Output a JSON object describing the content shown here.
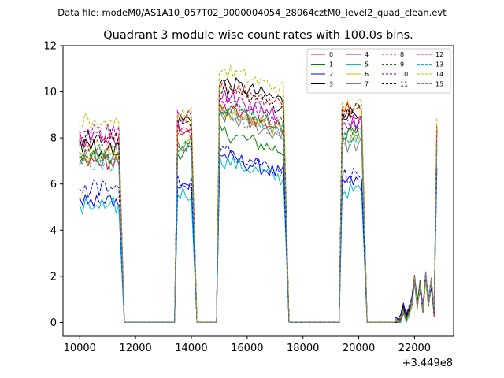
{
  "chart_data": {
    "type": "line",
    "suptitle": "Data file: modeM0/AS1A10_057T02_9000004054_28064cztM0_level2_quad_clean.evt",
    "title": "Quadrant 3 module wise count rates with 100.0s bins.",
    "xlabel": "",
    "ylabel": "",
    "x_offset_label": "+3.449e8",
    "xlim": [
      9400,
      23400
    ],
    "ylim": [
      -0.6,
      12
    ],
    "xticks": [
      10000,
      12000,
      14000,
      16000,
      18000,
      20000,
      22000
    ],
    "xtick_labels": [
      "10000",
      "12000",
      "14000",
      "16000",
      "18000",
      "20000",
      "22000"
    ],
    "yticks": [
      0,
      2,
      4,
      6,
      8,
      10,
      12
    ],
    "ytick_labels": [
      "0",
      "2",
      "4",
      "6",
      "8",
      "10",
      "12"
    ],
    "legend_position": "top-right",
    "legend_columns": 4,
    "series": [
      {
        "name": "0",
        "color": "#ff0000",
        "dash": "solid",
        "levels": [
          6.9,
          8.4,
          8.6,
          9.4,
          9.2
        ]
      },
      {
        "name": "1",
        "color": "#008000",
        "dash": "solid",
        "levels": [
          7.1,
          7.4,
          7.6,
          8.2,
          7.9
        ]
      },
      {
        "name": "2",
        "color": "#0000ff",
        "dash": "solid",
        "levels": [
          5.3,
          5.9,
          6.6,
          6.1,
          6.2
        ]
      },
      {
        "name": "3",
        "color": "#000000",
        "dash": "solid",
        "levels": [
          7.6,
          8.8,
          9.8,
          9.1,
          8.9
        ]
      },
      {
        "name": "4",
        "color": "#bf00bf",
        "dash": "solid",
        "levels": [
          8.0,
          8.6,
          9.2,
          8.7,
          8.4
        ]
      },
      {
        "name": "5",
        "color": "#00bfbf",
        "dash": "solid",
        "levels": [
          5.0,
          5.6,
          6.4,
          5.7,
          5.9
        ]
      },
      {
        "name": "6",
        "color": "#bfbf00",
        "dash": "solid",
        "levels": [
          7.3,
          7.7,
          8.5,
          8.0,
          7.8
        ]
      },
      {
        "name": "7",
        "color": "#808080",
        "dash": "solid",
        "levels": [
          7.0,
          7.5,
          8.3,
          7.7,
          7.6
        ]
      },
      {
        "name": "8",
        "color": "#ff0000",
        "dash": "dashed",
        "levels": [
          7.8,
          8.1,
          9.7,
          9.0,
          9.0
        ]
      },
      {
        "name": "9",
        "color": "#008000",
        "dash": "dashed",
        "levels": [
          7.4,
          7.9,
          8.8,
          8.2,
          8.1
        ]
      },
      {
        "name": "10",
        "color": "#0000ff",
        "dash": "dashed",
        "levels": [
          5.8,
          6.1,
          6.8,
          6.4,
          6.2
        ]
      },
      {
        "name": "11",
        "color": "#000000",
        "dash": "dashed",
        "levels": [
          7.9,
          8.7,
          9.5,
          9.2,
          9.1
        ]
      },
      {
        "name": "12",
        "color": "#bf00bf",
        "dash": "dashed",
        "levels": [
          8.3,
          8.9,
          9.0,
          8.6,
          8.8
        ]
      },
      {
        "name": "13",
        "color": "#00bfbf",
        "dash": "dashed",
        "levels": [
          6.9,
          7.5,
          8.6,
          8.0,
          7.7
        ]
      },
      {
        "name": "14",
        "color": "#bfbf00",
        "dash": "dashed",
        "levels": [
          8.7,
          9.0,
          10.3,
          9.4,
          9.8
        ]
      },
      {
        "name": "15",
        "color": "#808080",
        "dash": "dashed",
        "levels": [
          7.2,
          7.6,
          8.4,
          7.8,
          7.5
        ]
      }
    ],
    "on_segments": [
      {
        "start": 10000,
        "end": 11400,
        "fall_end": 11600
      },
      {
        "start": 13500,
        "end": 14000,
        "fall_end": 14200
      },
      {
        "start": 15000,
        "end": 17300,
        "fall_end": 17500
      },
      {
        "start": 19400,
        "end": 20100,
        "fall_end": 20300
      }
    ],
    "gap_value": 0,
    "tail_segment": {
      "start": 21300,
      "end": 22800,
      "values": [
        0.0,
        0.0,
        0.1,
        0.6,
        0.2,
        0.5,
        0.9,
        1.8,
        0.8,
        1.6,
        0.6,
        2.0,
        0.9,
        1.7,
        0.5,
        7.8
      ]
    },
    "bin_size_s": 100
  }
}
